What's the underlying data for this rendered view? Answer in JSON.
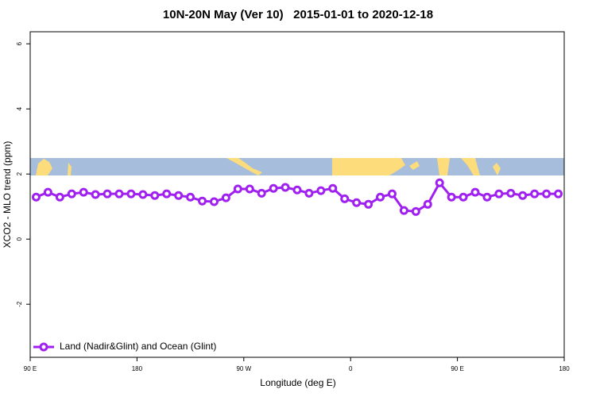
{
  "chart_data": {
    "type": "line",
    "title": "10N-20N May (Ver 10)   2015-01-01 to 2020-12-18",
    "x_label": "Longitude (deg E)",
    "y_label": "XCO2 - MLO trend (ppm)",
    "x": [
      95,
      105,
      115,
      125,
      135,
      145,
      155,
      165,
      175,
      185,
      195,
      205,
      215,
      225,
      235,
      245,
      255,
      265,
      275,
      285,
      295,
      305,
      315,
      325,
      335,
      345,
      355,
      365,
      375,
      385,
      395,
      405,
      415,
      425,
      435,
      445,
      455,
      465,
      475,
      485,
      495,
      505,
      515,
      525,
      535
    ],
    "series": [
      {
        "name": "Land (Nadir&Glint) and Ocean (Glint)",
        "color": "#a020f0",
        "values": [
          1.29,
          1.44,
          1.29,
          1.39,
          1.44,
          1.37,
          1.39,
          1.39,
          1.39,
          1.37,
          1.34,
          1.39,
          1.34,
          1.29,
          1.17,
          1.15,
          1.27,
          1.54,
          1.54,
          1.41,
          1.56,
          1.59,
          1.51,
          1.41,
          1.49,
          1.56,
          1.24,
          1.12,
          1.07,
          1.29,
          1.39,
          0.88,
          0.85,
          1.07,
          1.73,
          1.29,
          1.29,
          1.44,
          1.29,
          1.39,
          1.41,
          1.34,
          1.39,
          1.39,
          1.39
        ]
      }
    ],
    "xlim": [
      90,
      540
    ],
    "xticks": [
      {
        "value": 90,
        "label": "90 E"
      },
      {
        "value": 180,
        "label": "180"
      },
      {
        "value": 270,
        "label": "90 W"
      },
      {
        "value": 360,
        "label": "0"
      },
      {
        "value": 450,
        "label": "90 E"
      },
      {
        "value": 540,
        "label": "180"
      }
    ],
    "ylim": [
      -3.63,
      6.37
    ],
    "yticks": [
      -2,
      0,
      2,
      4,
      6
    ],
    "grid": false,
    "legend": "bottom-left"
  }
}
